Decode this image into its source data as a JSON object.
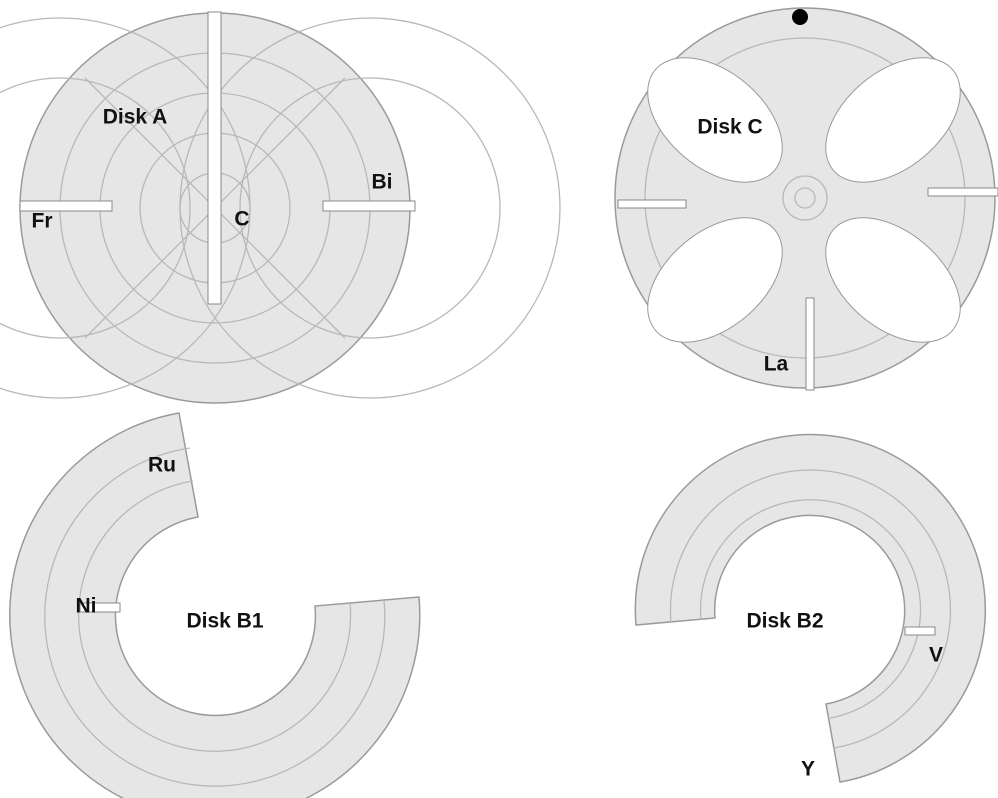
{
  "disks": [
    {
      "title": "Disk A",
      "labels": [
        "Fr",
        "C",
        "Bi"
      ]
    },
    {
      "title": "Disk C",
      "labels": [
        "La"
      ]
    },
    {
      "title": "Disk B1",
      "labels": [
        "Ru",
        "Ni"
      ]
    },
    {
      "title": "Disk B2",
      "labels": [
        "V",
        "Y"
      ]
    }
  ]
}
